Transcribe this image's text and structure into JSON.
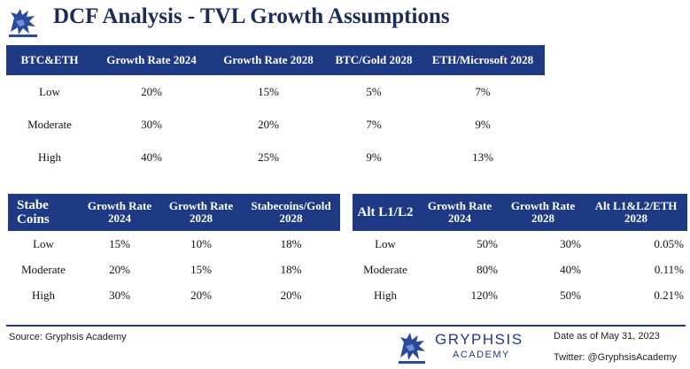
{
  "header": {
    "title": "DCF Analysis - TVL Growth Assumptions",
    "logo_icon": "griffin-logo-icon"
  },
  "colors": {
    "brand": "#1f3a84",
    "header_text": "#ffffff",
    "title": "#1b2c5a"
  },
  "btc_eth_table": {
    "headers": [
      "BTC&ETH",
      "Growth Rate 2024",
      "Growth Rate 2028",
      "BTC/Gold 2028",
      "ETH/Microsoft 2028"
    ],
    "rows": [
      [
        "Low",
        "20%",
        "15%",
        "5%",
        "7%"
      ],
      [
        "Moderate",
        "30%",
        "20%",
        "7%",
        "9%"
      ],
      [
        "High",
        "40%",
        "25%",
        "9%",
        "13%"
      ]
    ]
  },
  "stablecoins_table": {
    "headers": [
      "Stabe Coins",
      "Growth Rate 2024",
      "Growth Rate 2028",
      "Stabecoins/Gold 2028"
    ],
    "rows": [
      [
        "Low",
        "15%",
        "10%",
        "18%"
      ],
      [
        "Moderate",
        "20%",
        "15%",
        "18%"
      ],
      [
        "High",
        "30%",
        "20%",
        "20%"
      ]
    ]
  },
  "alt_l1l2_table": {
    "headers": [
      "Alt L1/L2",
      "Growth Rate 2024",
      "Growth Rate 2028",
      "Alt L1&L2/ETH 2028"
    ],
    "rows": [
      [
        "Low",
        "50%",
        "30%",
        "0.05%"
      ],
      [
        "Moderate",
        "80%",
        "40%",
        "0.11%"
      ],
      [
        "High",
        "120%",
        "50%",
        "0.21%"
      ]
    ]
  },
  "footer": {
    "source": "Source: Gryphsis Academy",
    "brand_name": "GRYPHSIS",
    "brand_sub": "ACADEMY",
    "brand_icon": "griffin-logo-icon",
    "date": "Date as of May 31, 2023",
    "twitter": "Twitter: @GryphsisAcademy"
  }
}
